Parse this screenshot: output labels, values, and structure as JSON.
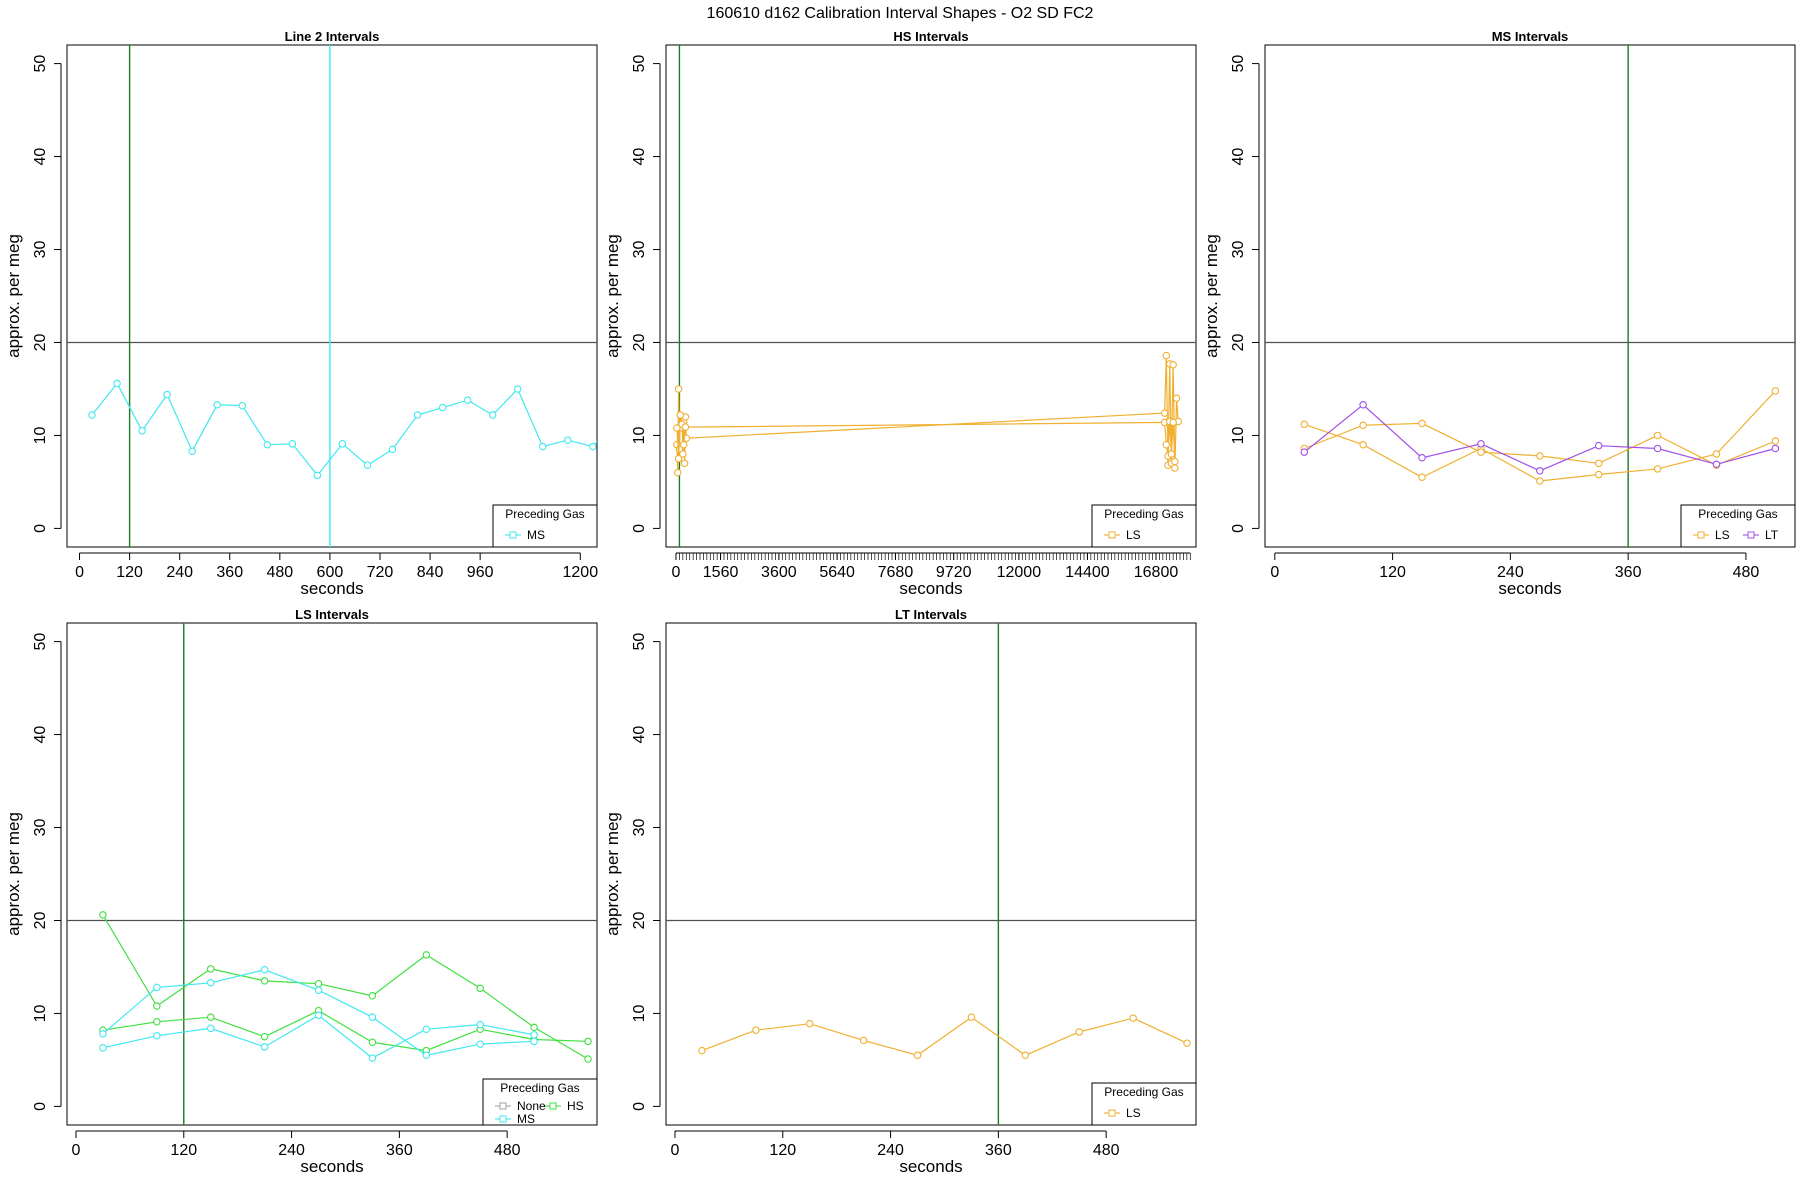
{
  "title": "160610   d162   Calibration Interval Shapes - O2 SD FC2",
  "colors": {
    "None": "#a0a0a0",
    "MS": "#40e8f0",
    "HS": "#40e040",
    "LS": "#f0b030",
    "LT": "#a050e8",
    "vline_green": "#207820",
    "ref_line": "#505050",
    "frame": "#000000"
  },
  "chart_data": [
    {
      "type": "line",
      "title": "Line 2 Intervals",
      "xlabel": "seconds",
      "ylabel": "approx. per meg",
      "xlim": [
        -30,
        1240
      ],
      "ylim": [
        -2,
        52
      ],
      "xticks": [
        0,
        120,
        240,
        360,
        480,
        600,
        720,
        840,
        960,
        1200
      ],
      "xtick_labels": [
        "0",
        "120",
        "240",
        "360",
        "480",
        "600",
        "720",
        "840",
        "960",
        "1200"
      ],
      "yticks": [
        0,
        10,
        20,
        30,
        40,
        50
      ],
      "hline": 20,
      "vlines": [
        {
          "x": 120,
          "color": "vline_green"
        },
        {
          "x": 600,
          "color": "MS"
        }
      ],
      "legend": {
        "title": "Preceding Gas",
        "entries": [
          "MS"
        ],
        "position": "bottom-right"
      },
      "series": [
        {
          "name": "MS",
          "x": [
            30,
            90,
            150,
            210,
            270,
            330,
            390,
            450,
            510,
            570,
            630,
            690,
            750,
            810,
            870,
            930,
            990,
            1050,
            1110,
            1170,
            1230,
            1260
          ],
          "y": [
            12.2,
            15.6,
            10.5,
            14.4,
            8.3,
            13.3,
            13.2,
            9.0,
            9.1,
            5.7,
            9.1,
            6.8,
            8.5,
            12.2,
            13.0,
            13.8,
            12.2,
            15.0,
            8.8,
            9.5,
            8.8,
            10.4
          ]
        }
      ]
    },
    {
      "type": "line",
      "title": "HS Intervals",
      "xlabel": "seconds",
      "ylabel": "approx. per meg",
      "xlim": [
        -350,
        18200
      ],
      "ylim": [
        -2,
        52
      ],
      "xticks": [
        0,
        1560,
        3600,
        5640,
        7680,
        9720,
        12000,
        14400,
        16800
      ],
      "xtick_labels": [
        "0",
        "1560",
        "3600",
        "5640",
        "7680",
        "9720",
        "12000",
        "14400",
        "16800"
      ],
      "minor_tick_step": 120,
      "minor_tick_range": [
        0,
        18000
      ],
      "yticks": [
        0,
        10,
        20,
        30,
        40,
        50
      ],
      "hline": 20,
      "vlines": [
        {
          "x": 120,
          "color": "vline_green"
        }
      ],
      "legend": {
        "title": "Preceding Gas",
        "entries": [
          "LS"
        ],
        "position": "bottom-right"
      },
      "series": [
        {
          "name": "LS",
          "x": [
            30,
            60,
            90,
            120,
            150,
            180,
            210,
            240,
            270,
            300,
            330,
            360,
            17100,
            17160,
            17220,
            17280,
            17340,
            17400,
            17460,
            17520,
            17580
          ],
          "y": [
            9.0,
            6.0,
            15.0,
            8.5,
            12.2,
            10.8,
            12.0,
            8.0,
            11.5,
            7.0,
            12.0,
            9.7,
            12.4,
            18.6,
            6.8,
            17.7,
            7.0,
            17.6,
            6.5,
            14.0,
            11.5
          ]
        },
        {
          "name": "LS",
          "x": [
            30,
            90,
            150,
            210,
            270,
            330,
            17100,
            17160,
            17220,
            17280,
            17340,
            17400,
            17460
          ],
          "y": [
            10.8,
            7.5,
            12.2,
            11.2,
            9.0,
            10.9,
            11.4,
            9.0,
            7.8,
            11.5,
            8.0,
            11.4,
            7.2
          ]
        }
      ]
    },
    {
      "type": "line",
      "title": "MS Intervals",
      "xlabel": "seconds",
      "ylabel": "approx. per meg",
      "xlim": [
        -10,
        530
      ],
      "ylim": [
        -2,
        52
      ],
      "xticks": [
        0,
        120,
        240,
        360,
        480
      ],
      "xtick_labels": [
        "0",
        "120",
        "240",
        "360",
        "480"
      ],
      "yticks": [
        0,
        10,
        20,
        30,
        40,
        50
      ],
      "hline": 20,
      "vlines": [
        {
          "x": 360,
          "color": "vline_green"
        }
      ],
      "legend": {
        "title": "Preceding Gas",
        "entries": [
          "LS",
          "LT"
        ],
        "position": "bottom-right"
      },
      "series": [
        {
          "name": "LS",
          "x": [
            30,
            90,
            150,
            210,
            270,
            330,
            390,
            450,
            510
          ],
          "y": [
            11.2,
            9.0,
            5.5,
            8.6,
            5.1,
            5.8,
            6.4,
            8.0,
            14.8
          ]
        },
        {
          "name": "LS",
          "x": [
            30,
            90,
            150,
            210,
            270,
            330,
            390,
            450,
            510
          ],
          "y": [
            8.6,
            11.1,
            11.3,
            8.2,
            7.8,
            7.0,
            10.0,
            6.8,
            9.4
          ]
        },
        {
          "name": "LT",
          "x": [
            30,
            90,
            150,
            210,
            270,
            330,
            390,
            450,
            510
          ],
          "y": [
            8.2,
            13.3,
            7.6,
            9.1,
            6.2,
            8.9,
            8.6,
            6.9,
            8.6
          ]
        }
      ]
    },
    {
      "type": "line",
      "title": "LS Intervals",
      "xlabel": "seconds",
      "ylabel": "approx. per meg",
      "xlim": [
        -10,
        580
      ],
      "ylim": [
        -2,
        52
      ],
      "xticks": [
        0,
        120,
        240,
        360,
        480
      ],
      "xtick_labels": [
        "0",
        "120",
        "240",
        "360",
        "480"
      ],
      "yticks": [
        0,
        10,
        20,
        30,
        40,
        50
      ],
      "hline": 20,
      "vlines": [
        {
          "x": 120,
          "color": "vline_green"
        }
      ],
      "legend": {
        "title": "Preceding Gas",
        "entries": [
          "None",
          "HS",
          "MS"
        ],
        "position": "bottom-right"
      },
      "series": [
        {
          "name": "HS",
          "x": [
            30,
            90,
            150,
            210,
            270,
            330,
            390,
            450,
            510,
            570
          ],
          "y": [
            20.6,
            10.8,
            14.8,
            13.5,
            13.2,
            11.9,
            16.3,
            12.7,
            8.5,
            5.1
          ]
        },
        {
          "name": "HS",
          "x": [
            30,
            90,
            150,
            210,
            270,
            330,
            390,
            450,
            510,
            570
          ],
          "y": [
            8.2,
            9.1,
            9.6,
            7.5,
            10.3,
            6.9,
            6.0,
            8.3,
            7.2,
            7.0
          ]
        },
        {
          "name": "MS",
          "x": [
            30,
            90,
            150,
            210,
            270,
            330,
            390,
            450,
            510
          ],
          "y": [
            7.8,
            12.8,
            13.3,
            14.7,
            12.5,
            9.6,
            5.5,
            6.7,
            7.0
          ]
        },
        {
          "name": "MS",
          "x": [
            30,
            90,
            150,
            210,
            270,
            330,
            390,
            450,
            510
          ],
          "y": [
            6.3,
            7.6,
            8.4,
            6.4,
            9.8,
            5.2,
            8.3,
            8.8,
            7.7
          ]
        }
      ]
    },
    {
      "type": "line",
      "title": "LT Intervals",
      "xlabel": "seconds",
      "ylabel": "approx. per meg",
      "xlim": [
        -10,
        580
      ],
      "ylim": [
        -2,
        52
      ],
      "xticks": [
        0,
        120,
        240,
        360,
        480
      ],
      "xtick_labels": [
        "0",
        "120",
        "240",
        "360",
        "480"
      ],
      "yticks": [
        0,
        10,
        20,
        30,
        40,
        50
      ],
      "hline": 20,
      "vlines": [
        {
          "x": 360,
          "color": "vline_green"
        }
      ],
      "legend": {
        "title": "Preceding Gas",
        "entries": [
          "LS"
        ],
        "position": "bottom-right"
      },
      "series": [
        {
          "name": "LS",
          "x": [
            30,
            90,
            150,
            210,
            270,
            330,
            390,
            450,
            510,
            570
          ],
          "y": [
            6.0,
            8.2,
            8.9,
            7.1,
            5.5,
            9.6,
            5.5,
            8.0,
            9.5,
            6.8
          ]
        }
      ]
    }
  ]
}
